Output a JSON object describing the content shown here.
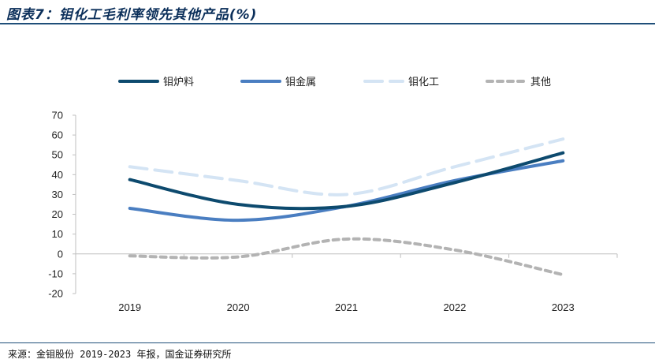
{
  "header": {
    "title": "图表7：钼化工毛利率领先其他产品(%)"
  },
  "footer": {
    "source": "来源：金钼股份 2019-2023 年报，国金证券研究所"
  },
  "chart_data": {
    "type": "line",
    "title": "",
    "xlabel": "",
    "ylabel": "",
    "categories": [
      "2019",
      "2020",
      "2021",
      "2022",
      "2023"
    ],
    "ylim": [
      -20,
      70
    ],
    "yticks": [
      "70",
      "60",
      "50",
      "40",
      "30",
      "20",
      "10",
      "0",
      "-10",
      "-20"
    ],
    "grid": false,
    "legend_position": "top",
    "series": [
      {
        "name": "钼炉料",
        "values": [
          37.5,
          25,
          24,
          36,
          51
        ],
        "color": "#0d4a6e",
        "dash": "solid"
      },
      {
        "name": "钼金属",
        "values": [
          23,
          17,
          24,
          37,
          47
        ],
        "color": "#4a7ec1",
        "dash": "solid"
      },
      {
        "name": "钼化工",
        "values": [
          44,
          37,
          30,
          44,
          58
        ],
        "color": "#d4e4f4",
        "dash": "dashed"
      },
      {
        "name": "其他",
        "values": [
          -1,
          -1.5,
          7.5,
          2,
          -10.5
        ],
        "color": "#b3b3b3",
        "dash": "dotted"
      }
    ]
  }
}
